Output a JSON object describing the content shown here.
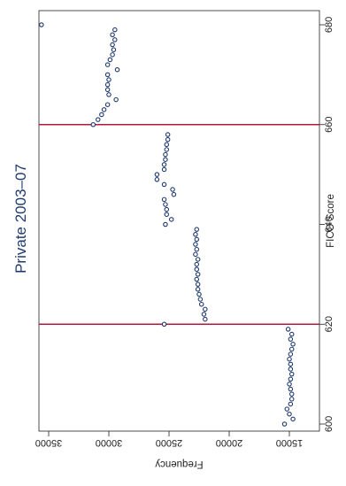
{
  "chart_data": {
    "type": "scatter",
    "title": "Private 2003–07",
    "xlabel": "FICO Score",
    "ylabel": "Frequency",
    "x_ticks": [
      600,
      620,
      640,
      660,
      680
    ],
    "y_ticks": [
      15000,
      20000,
      25000,
      30000,
      35000
    ],
    "y_tick_labels": [
      "15000",
      "20000",
      "25000",
      "30000",
      "35000"
    ],
    "xlim": [
      598,
      682
    ],
    "ylim": [
      14000,
      36500
    ],
    "grid": false,
    "orientation": "rotated-90-clockwise",
    "reference_lines_x": [
      620,
      660
    ],
    "colors": {
      "title": "#1f3a6e",
      "marker": "#1f3a6e",
      "reference_line": "#b3183a",
      "axis": "#222222"
    },
    "points": [
      {
        "x": 600,
        "y": 15400
      },
      {
        "x": 601,
        "y": 14700
      },
      {
        "x": 602,
        "y": 15000
      },
      {
        "x": 603,
        "y": 15200
      },
      {
        "x": 604,
        "y": 14900
      },
      {
        "x": 605,
        "y": 14800
      },
      {
        "x": 606,
        "y": 14800
      },
      {
        "x": 607,
        "y": 14900
      },
      {
        "x": 608,
        "y": 15000
      },
      {
        "x": 609,
        "y": 14900
      },
      {
        "x": 610,
        "y": 14800
      },
      {
        "x": 611,
        "y": 14900
      },
      {
        "x": 612,
        "y": 14900
      },
      {
        "x": 613,
        "y": 15000
      },
      {
        "x": 614,
        "y": 14900
      },
      {
        "x": 615,
        "y": 14800
      },
      {
        "x": 616,
        "y": 14700
      },
      {
        "x": 617,
        "y": 14900
      },
      {
        "x": 618,
        "y": 14800
      },
      {
        "x": 619,
        "y": 15100
      },
      {
        "x": 620,
        "y": 25400
      },
      {
        "x": 621,
        "y": 22000
      },
      {
        "x": 622,
        "y": 22100
      },
      {
        "x": 623,
        "y": 22000
      },
      {
        "x": 624,
        "y": 22300
      },
      {
        "x": 625,
        "y": 22400
      },
      {
        "x": 626,
        "y": 22500
      },
      {
        "x": 627,
        "y": 22600
      },
      {
        "x": 628,
        "y": 22600
      },
      {
        "x": 629,
        "y": 22700
      },
      {
        "x": 630,
        "y": 22600
      },
      {
        "x": 631,
        "y": 22700
      },
      {
        "x": 632,
        "y": 22700
      },
      {
        "x": 633,
        "y": 22600
      },
      {
        "x": 634,
        "y": 22800
      },
      {
        "x": 635,
        "y": 22700
      },
      {
        "x": 636,
        "y": 22800
      },
      {
        "x": 637,
        "y": 22700
      },
      {
        "x": 638,
        "y": 22800
      },
      {
        "x": 639,
        "y": 22700
      },
      {
        "x": 640,
        "y": 25300
      },
      {
        "x": 641,
        "y": 24800
      },
      {
        "x": 642,
        "y": 25200
      },
      {
        "x": 643,
        "y": 25200
      },
      {
        "x": 644,
        "y": 25300
      },
      {
        "x": 645,
        "y": 25400
      },
      {
        "x": 646,
        "y": 24600
      },
      {
        "x": 647,
        "y": 24700
      },
      {
        "x": 648,
        "y": 25400
      },
      {
        "x": 649,
        "y": 26000
      },
      {
        "x": 650,
        "y": 26000
      },
      {
        "x": 651,
        "y": 25400
      },
      {
        "x": 652,
        "y": 25400
      },
      {
        "x": 653,
        "y": 25300
      },
      {
        "x": 654,
        "y": 25300
      },
      {
        "x": 655,
        "y": 25200
      },
      {
        "x": 656,
        "y": 25200
      },
      {
        "x": 657,
        "y": 25100
      },
      {
        "x": 658,
        "y": 25100
      },
      {
        "x": 660,
        "y": 31300
      },
      {
        "x": 661,
        "y": 30900
      },
      {
        "x": 662,
        "y": 30600
      },
      {
        "x": 663,
        "y": 30400
      },
      {
        "x": 664,
        "y": 30100
      },
      {
        "x": 665,
        "y": 29400
      },
      {
        "x": 666,
        "y": 30000
      },
      {
        "x": 667,
        "y": 30100
      },
      {
        "x": 668,
        "y": 30100
      },
      {
        "x": 669,
        "y": 30000
      },
      {
        "x": 670,
        "y": 30100
      },
      {
        "x": 671,
        "y": 29300
      },
      {
        "x": 672,
        "y": 30100
      },
      {
        "x": 673,
        "y": 29900
      },
      {
        "x": 674,
        "y": 29700
      },
      {
        "x": 675,
        "y": 29600
      },
      {
        "x": 676,
        "y": 29700
      },
      {
        "x": 677,
        "y": 29500
      },
      {
        "x": 678,
        "y": 29700
      },
      {
        "x": 679,
        "y": 29500
      },
      {
        "x": 680,
        "y": 35600
      }
    ]
  }
}
